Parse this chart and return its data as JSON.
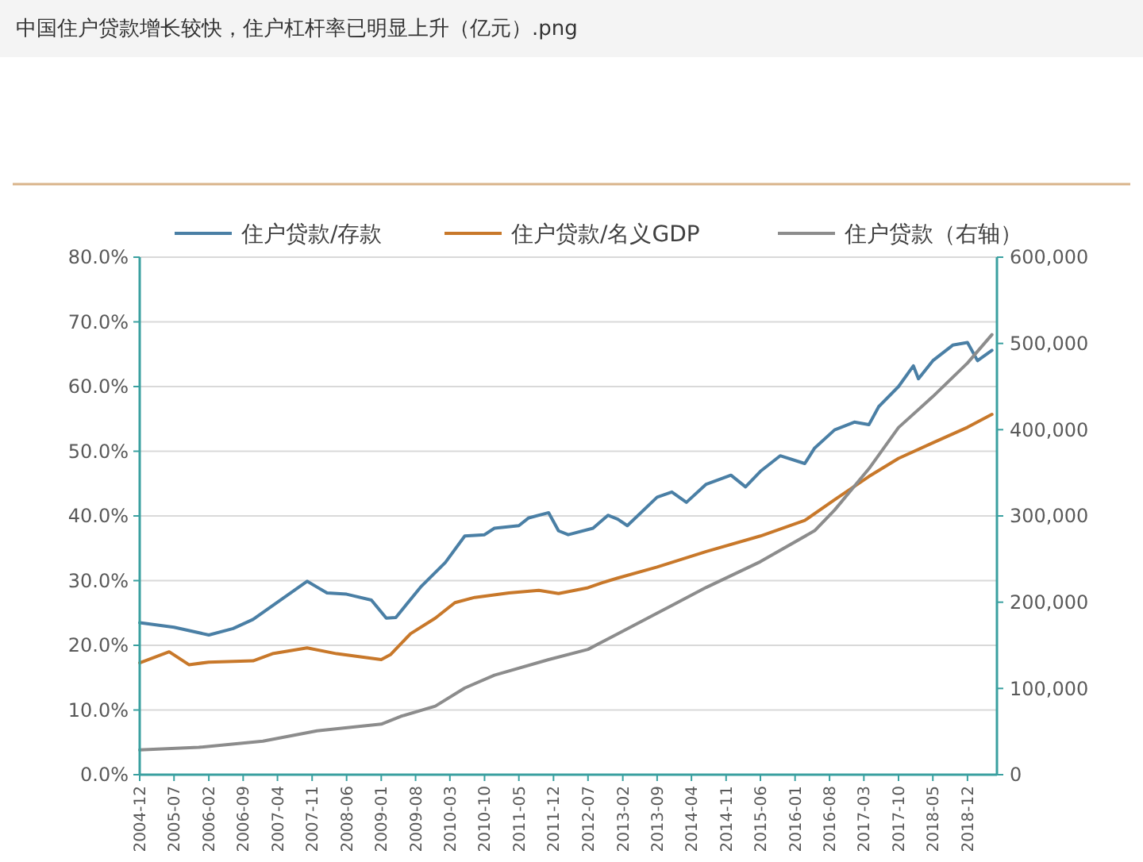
{
  "chart_data": {
    "type": "line",
    "title": "中国住户贷款增长较快，住户杠杆率已明显上升（亿元）.png",
    "legend": "top",
    "grid": "y",
    "line_style": "solid",
    "marker": "none",
    "xlim": [
      "2004-12",
      "2019-06"
    ],
    "xticks": [
      "2004-12",
      "2005-07",
      "2006-02",
      "2006-09",
      "2007-04",
      "2007-11",
      "2008-06",
      "2009-01",
      "2009-08",
      "2010-03",
      "2010-10",
      "2011-05",
      "2011-12",
      "2012-07",
      "2013-02",
      "2013-09",
      "2014-04",
      "2014-11",
      "2015-06",
      "2016-01",
      "2016-08",
      "2017-03",
      "2017-10",
      "2018-05",
      "2018-12"
    ],
    "ylim": [
      0,
      80
    ],
    "yticks": [
      {
        "value": 0,
        "label": "0.0%"
      },
      {
        "value": 10,
        "label": "10.0%"
      },
      {
        "value": 20,
        "label": "20.0%"
      },
      {
        "value": 30,
        "label": "30.0%"
      },
      {
        "value": 40,
        "label": "40.0%"
      },
      {
        "value": 50,
        "label": "50.0%"
      },
      {
        "value": 60,
        "label": "60.0%"
      },
      {
        "value": 70,
        "label": "70.0%"
      },
      {
        "value": 80,
        "label": "80.0%"
      }
    ],
    "y2lim": [
      0,
      600000
    ],
    "y2ticks": [
      0,
      {
        "value": 100000,
        "label": "100,000"
      },
      {
        "value": 200000,
        "label": "200,000"
      },
      {
        "value": 300000,
        "label": "300,000"
      },
      {
        "value": 400000,
        "label": "400,000"
      },
      {
        "value": 500000,
        "label": "500,000"
      },
      {
        "value": 600000,
        "label": "600,000"
      }
    ],
    "series": [
      {
        "name": "住户贷款/存款",
        "color": "#4a7fa5",
        "x": [
          "2004-12",
          "2005-07",
          "2006-02",
          "2006-07",
          "2006-11",
          "2007-10",
          "2007-12",
          "2008-02",
          "2008-06",
          "2008-11",
          "2009-02",
          "2009-04",
          "2009-09",
          "2010-02",
          "2010-06",
          "2010-10",
          "2010-12",
          "2011-05",
          "2011-07",
          "2011-11",
          "2012-01",
          "2012-03",
          "2012-08",
          "2012-11",
          "2013-01",
          "2013-03",
          "2013-09",
          "2013-12",
          "2014-03",
          "2014-07",
          "2014-12",
          "2015-03",
          "2015-06",
          "2015-10",
          "2016-03",
          "2016-05",
          "2016-09",
          "2017-01",
          "2017-04",
          "2017-06",
          "2017-10",
          "2018-01",
          "2018-02",
          "2018-05",
          "2018-09",
          "2018-12",
          "2019-02",
          "2019-05"
        ],
        "values": [
          23.5,
          22.8,
          21.6,
          22.6,
          24,
          29.9,
          29,
          28.1,
          27.9,
          27,
          24.2,
          24.3,
          29,
          32.8,
          36.9,
          37.1,
          38.1,
          38.5,
          39.7,
          40.5,
          37.7,
          37.1,
          38.1,
          40.1,
          39.5,
          38.5,
          42.9,
          43.7,
          42.1,
          44.9,
          46.3,
          44.5,
          46.9,
          49.3,
          48.1,
          50.5,
          53.3,
          54.5,
          54.1,
          56.9,
          60,
          63.2,
          61.2,
          64,
          66.4,
          66.8,
          64,
          65.6
        ]
      },
      {
        "name": "住户贷款/名义GDP",
        "color": "#c8782a",
        "x": [
          "2004-12",
          "2005-06",
          "2005-10",
          "2006-02",
          "2006-11",
          "2007-03",
          "2007-10",
          "2008-04",
          "2009-01",
          "2009-03",
          "2009-07",
          "2009-12",
          "2010-04",
          "2010-08",
          "2011-03",
          "2011-09",
          "2012-01",
          "2012-07",
          "2012-10",
          "2013-01",
          "2013-09",
          "2014-07",
          "2015-06",
          "2016-03",
          "2016-09",
          "2017-04",
          "2017-10",
          "2018-05",
          "2018-12",
          "2019-05"
        ],
        "values": [
          17.3,
          19,
          17,
          17.4,
          17.6,
          18.7,
          19.6,
          18.7,
          17.8,
          18.6,
          21.8,
          24.2,
          26.6,
          27.4,
          28.1,
          28.5,
          28,
          28.9,
          29.7,
          30.4,
          32.1,
          34.5,
          36.9,
          39.3,
          42.5,
          46.1,
          48.9,
          51.3,
          53.7,
          55.7
        ]
      },
      {
        "name": "住户贷款（右轴）",
        "color": "#8c8c8c",
        "axis": "y2",
        "x": [
          "2004-12",
          "2005-12",
          "2007-01",
          "2007-12",
          "2009-01",
          "2009-05",
          "2009-12",
          "2010-06",
          "2010-12",
          "2011-11",
          "2012-07",
          "2012-10",
          "2013-01",
          "2013-09",
          "2014-07",
          "2015-06",
          "2016-05",
          "2016-09",
          "2017-04",
          "2017-10",
          "2018-05",
          "2018-12",
          "2019-05"
        ],
        "values": [
          28700,
          31700,
          38900,
          50800,
          58600,
          67600,
          79500,
          100500,
          115400,
          133400,
          145300,
          154300,
          163300,
          187200,
          217100,
          247000,
          282900,
          306800,
          354700,
          402500,
          438400,
          477300,
          510200
        ]
      }
    ]
  }
}
